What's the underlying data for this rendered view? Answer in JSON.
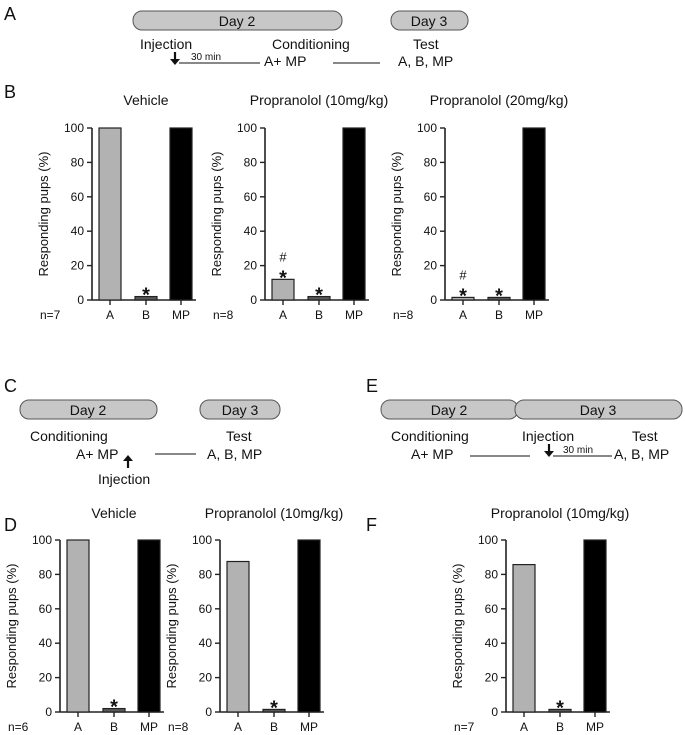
{
  "panels": {
    "A": {
      "letter": "A",
      "day_left": "Day 2",
      "day_right": "Day 3",
      "injection": "Injection",
      "interval": "30 min",
      "conditioning": "Conditioning",
      "conditioning_stim": "A+ MP",
      "test": "Test",
      "test_stims": "A, B, MP"
    },
    "B": {
      "letter": "B"
    },
    "C": {
      "letter": "C",
      "day_left": "Day 2",
      "day_right": "Day 3",
      "conditioning": "Conditioning",
      "conditioning_stim": "A+ MP",
      "injection": "Injection",
      "test": "Test",
      "test_stims": "A, B, MP"
    },
    "D": {
      "letter": "D"
    },
    "E": {
      "letter": "E",
      "day_left": "Day 2",
      "day_right": "Day 3",
      "conditioning": "Conditioning",
      "conditioning_stim": "A+ MP",
      "injection": "Injection",
      "interval": "30 min",
      "test": "Test",
      "test_stims": "A, B, MP"
    },
    "F": {
      "letter": "F"
    }
  },
  "colors": {
    "A": "#b2b2b2",
    "B": "#5a5a5a",
    "MP": "#000000"
  },
  "chart_data": [
    {
      "type": "bar",
      "panel": "B",
      "title": "Vehicle",
      "n_label": "n=7",
      "categories": [
        "A",
        "B",
        "MP"
      ],
      "values": [
        100,
        2,
        100
      ],
      "ylabel": "Responding pups (%)",
      "ylim": [
        0,
        100
      ],
      "yticks": [
        "0",
        "20",
        "40",
        "60",
        "80",
        "100"
      ],
      "annotations": [
        {
          "category": "B",
          "star": "*",
          "hash": ""
        }
      ]
    },
    {
      "type": "bar",
      "panel": "B",
      "title": "Propranolol (10mg/kg)",
      "n_label": "n=8",
      "categories": [
        "A",
        "B",
        "MP"
      ],
      "values": [
        12,
        2,
        100
      ],
      "ylabel": "Responding pups (%)",
      "ylim": [
        0,
        100
      ],
      "yticks": [
        "0",
        "20",
        "40",
        "60",
        "80",
        "100"
      ],
      "annotations": [
        {
          "category": "A",
          "star": "*",
          "hash": "#"
        },
        {
          "category": "B",
          "star": "*",
          "hash": ""
        }
      ]
    },
    {
      "type": "bar",
      "panel": "B",
      "title": "Propranolol (20mg/kg)",
      "n_label": "n=8",
      "categories": [
        "A",
        "B",
        "MP"
      ],
      "values": [
        1.5,
        1.5,
        100
      ],
      "ylabel": "Responding pups (%)",
      "ylim": [
        0,
        100
      ],
      "yticks": [
        "0",
        "20",
        "40",
        "60",
        "80",
        "100"
      ],
      "annotations": [
        {
          "category": "A",
          "star": "*",
          "hash": "#"
        },
        {
          "category": "B",
          "star": "*",
          "hash": ""
        }
      ]
    },
    {
      "type": "bar",
      "panel": "D",
      "title": "Vehicle",
      "n_label": "n=6",
      "categories": [
        "A",
        "B",
        "MP"
      ],
      "values": [
        100,
        2,
        100
      ],
      "ylabel": "Responding pups (%)",
      "ylim": [
        0,
        100
      ],
      "yticks": [
        "0",
        "20",
        "40",
        "60",
        "80",
        "100"
      ],
      "annotations": [
        {
          "category": "B",
          "star": "*",
          "hash": ""
        }
      ]
    },
    {
      "type": "bar",
      "panel": "D",
      "title": "Propranolol (10mg/kg)",
      "n_label": "n=8",
      "categories": [
        "A",
        "B",
        "MP"
      ],
      "values": [
        87.5,
        1.5,
        100
      ],
      "ylabel": "Responding pups (%)",
      "ylim": [
        0,
        100
      ],
      "yticks": [
        "0",
        "20",
        "40",
        "60",
        "80",
        "100"
      ],
      "annotations": [
        {
          "category": "B",
          "star": "*",
          "hash": ""
        }
      ]
    },
    {
      "type": "bar",
      "panel": "F",
      "title": "Propranolol (10mg/kg)",
      "n_label": "n=7",
      "categories": [
        "A",
        "B",
        "MP"
      ],
      "values": [
        85.7,
        1.5,
        100
      ],
      "ylabel": "Responding pups (%)",
      "ylim": [
        0,
        100
      ],
      "yticks": [
        "0",
        "20",
        "40",
        "60",
        "80",
        "100"
      ],
      "annotations": [
        {
          "category": "B",
          "star": "*",
          "hash": ""
        }
      ]
    }
  ]
}
